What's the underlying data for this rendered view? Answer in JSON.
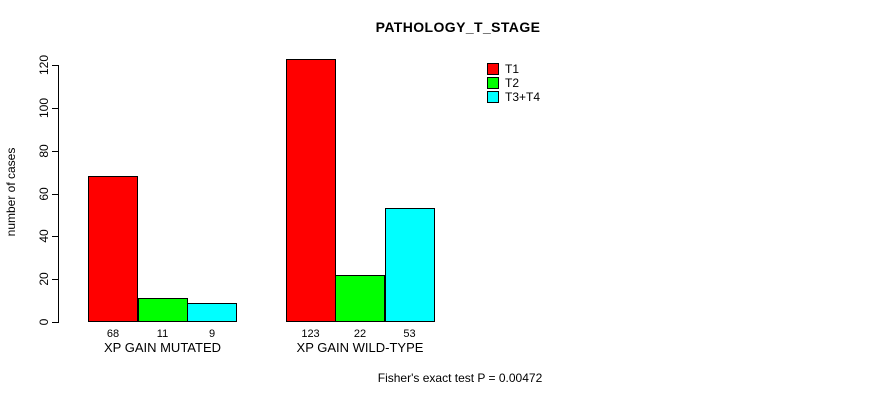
{
  "chart_data": {
    "type": "bar",
    "title": "PATHOLOGY_T_STAGE",
    "ylabel": "number of cases",
    "xlabel": "",
    "ylim": [
      0,
      120
    ],
    "yticks": [
      0,
      20,
      40,
      60,
      80,
      100,
      120
    ],
    "categories": [
      "XP GAIN MUTATED",
      "XP GAIN WILD-TYPE"
    ],
    "series": [
      {
        "name": "T1",
        "color": "#FF0000",
        "values": [
          68,
          123
        ]
      },
      {
        "name": "T2",
        "color": "#00FF00",
        "values": [
          11,
          22
        ]
      },
      {
        "name": "T3+T4",
        "color": "#00FFFF",
        "values": [
          9,
          53
        ]
      }
    ],
    "bar_value_labels": [
      [
        "68",
        "11",
        "9"
      ],
      [
        "123",
        "22",
        "53"
      ]
    ],
    "legend": {
      "entries": [
        "T1",
        "T2",
        "T3+T4"
      ],
      "position": "inside-top, right of center"
    },
    "grid": false,
    "annotation": "Fisher's exact test P = 0.00472",
    "colors": {
      "background": "#FFFFFF",
      "axis": "#000000",
      "text": "#000000",
      "bar_border": "#000000"
    }
  }
}
